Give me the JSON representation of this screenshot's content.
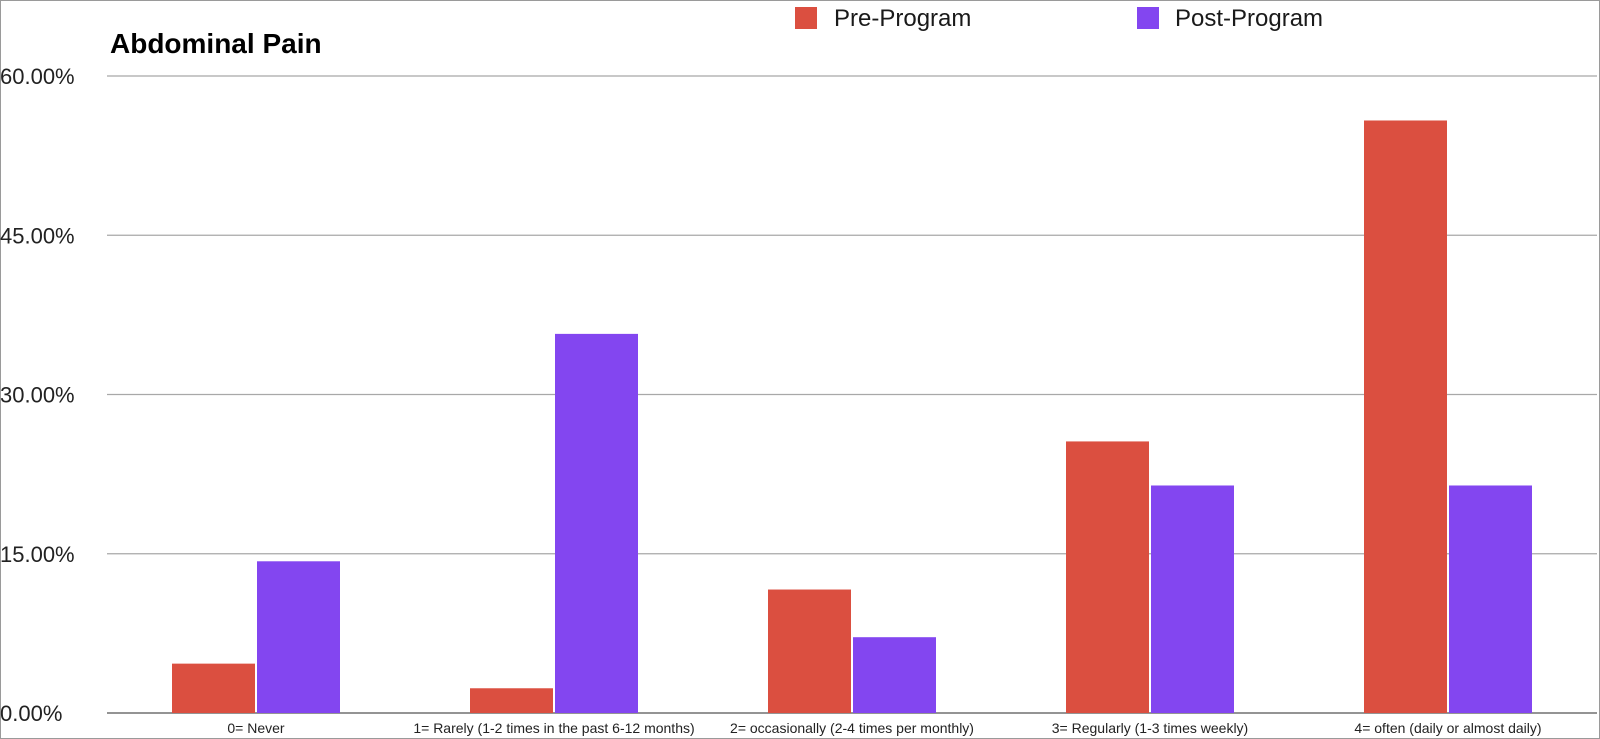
{
  "chart_data": {
    "type": "bar",
    "title": "Abdominal Pain",
    "xlabel": "",
    "ylabel": "",
    "categories": [
      "0= Never",
      "1= Rarely (1-2 times in the past 6-12 months)",
      "2= occasionally (2-4 times per monthly)",
      "3= Regularly (1-3 times weekly)",
      "4= often (daily or almost daily)"
    ],
    "series": [
      {
        "name": "Pre-Program",
        "color": "#db4f40",
        "values": [
          4.65,
          2.33,
          11.63,
          25.58,
          55.81
        ]
      },
      {
        "name": "Post-Program",
        "color": "#8346f0",
        "values": [
          14.29,
          35.71,
          7.14,
          21.43,
          21.43
        ]
      }
    ],
    "ylim": [
      0,
      60
    ],
    "yticks": [
      0,
      15,
      30,
      45,
      60
    ],
    "ytick_labels": [
      "0.00%",
      "15.00%",
      "30.00%",
      "45.00%",
      "60.00%"
    ],
    "grid": true,
    "legend_position": "top"
  }
}
